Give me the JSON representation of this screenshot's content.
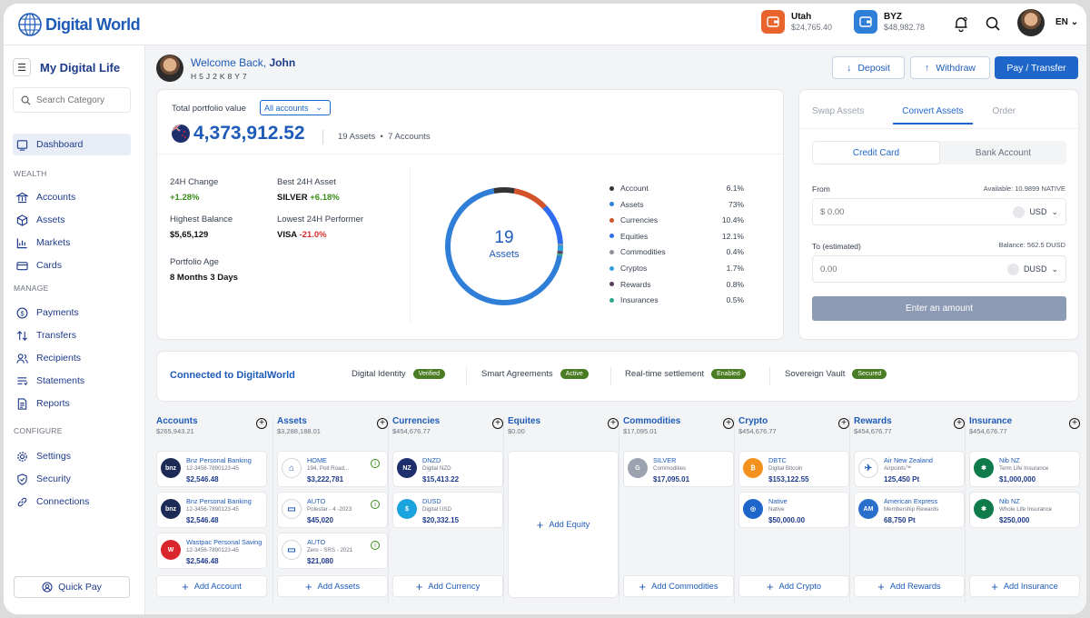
{
  "app": {
    "logo_text": "Digital World",
    "language": "EN"
  },
  "wallets": [
    {
      "name": "Utah",
      "value": "$24,765.40",
      "color": "#e8642c"
    },
    {
      "name": "BYZ",
      "value": "$48,982.78",
      "color": "#2f7fd8"
    }
  ],
  "sidebar": {
    "title": "My Digital Life",
    "search_placeholder": "Search Category",
    "dashboard": "Dashboard",
    "sections": [
      "WEALTH",
      "MANAGE",
      "CONFIGURE"
    ],
    "wealth": [
      "Accounts",
      "Assets",
      "Markets",
      "Cards"
    ],
    "manage": [
      "Payments",
      "Transfers",
      "Recipients",
      "Statements",
      "Reports"
    ],
    "configure": [
      "Settings",
      "Security",
      "Connections"
    ],
    "quick_pay": "Quick Pay"
  },
  "header": {
    "welcome": "Welcome Back,",
    "user_name": "John",
    "user_id": "H5J2K8Y7",
    "deposit": "Deposit",
    "withdraw": "Withdraw",
    "pay_transfer": "Pay / Transfer"
  },
  "portfolio": {
    "label": "Total portfolio value",
    "select": "All accounts",
    "value": "4,373,912.52",
    "assets_count": "19 Assets",
    "accounts_count": "7 Accounts",
    "change_label": "24H Change",
    "change_value": "+1.28%",
    "best_label": "Best 24H Asset",
    "best_name": "SILVER",
    "best_value": "+6.18%",
    "highest_label": "Highest Balance",
    "highest_value": "$5,65,129",
    "lowest_label": "Lowest 24H Performer",
    "lowest_name": "VISA",
    "lowest_value": "-21.0%",
    "age_label": "Portfolio Age",
    "age_value": "8 Months 3 Days",
    "donut_number": "19",
    "donut_label": "Assets"
  },
  "chart_data": {
    "type": "pie",
    "categories": [
      "Account",
      "Assets",
      "Currencies",
      "Equities",
      "Commodities",
      "Cryptos",
      "Rewards",
      "Insurances"
    ],
    "values": [
      6.1,
      73,
      10.4,
      12.1,
      0.4,
      1.7,
      0.8,
      0.5
    ],
    "labels": [
      "6.1%",
      "73%",
      "10.4%",
      "12.1%",
      "0.4%",
      "1.7%",
      "0.8%",
      "0.5%"
    ],
    "colors": [
      "#333333",
      "#2f7fd8",
      "#d2522a",
      "#2f6df0",
      "#8a8f98",
      "#2f9fe0",
      "#5a3f5f",
      "#2aa889"
    ],
    "center_text": "19 Assets"
  },
  "exchange": {
    "tabs": [
      "Swap Assets",
      "Convert Assets",
      "Order"
    ],
    "methods": [
      "Credit Card",
      "Bank Account"
    ],
    "from_label": "From",
    "available": "Available: 10.9899 NATIVE",
    "from_placeholder": "$ 0.00",
    "from_currency": "USD",
    "to_label": "To (estimated)",
    "balance": "Balance: 562.5 DUSD",
    "to_placeholder": "0.00",
    "to_currency": "DUSD",
    "submit": "Enter an amount"
  },
  "connected": {
    "title": "Connected to DigitalWorld",
    "items": [
      {
        "label": "Digital Identity",
        "badge": "Verified"
      },
      {
        "label": "Smart Agreements",
        "badge": "Active"
      },
      {
        "label": "Real-time settlement",
        "badge": "Enabled"
      },
      {
        "label": "Sovereign Vault",
        "badge": "Secured"
      }
    ]
  },
  "columns": [
    {
      "title": "Accounts",
      "total": "$265,943.21",
      "add": "Add Account",
      "items": [
        {
          "name": "Bnz Personal Banking",
          "detail": "12-3456-7890123-45",
          "amount": "$2,546.48",
          "icon": "bnz",
          "color": "#1d2a55"
        },
        {
          "name": "Bnz Personal Banking",
          "detail": "12-3456-7890123-45",
          "amount": "$2,546.48",
          "icon": "bnz",
          "color": "#1d2a55"
        },
        {
          "name": "Wastpac Personal Saving",
          "detail": "12-3456-7890123-45",
          "amount": "$2,546.48",
          "icon": "W",
          "color": "#d9262c"
        }
      ]
    },
    {
      "title": "Assets",
      "total": "$3,288,188.01",
      "add": "Add Assets",
      "items": [
        {
          "name": "HOME",
          "detail": "194, Polt Road...",
          "amount": "$3,222,781",
          "icon": "⌂",
          "color": "#ffffff"
        },
        {
          "name": "AUTO",
          "detail": "Polestar - 4 -2023",
          "amount": "$45,020",
          "icon": "▭",
          "color": "#ffffff"
        },
        {
          "name": "AUTO",
          "detail": "Zero - SRS - 2021",
          "amount": "$21,080",
          "icon": "▭",
          "color": "#ffffff"
        }
      ]
    },
    {
      "title": "Currencies",
      "total": "$454,676.77",
      "add": "Add Currency",
      "items": [
        {
          "name": "DNZD",
          "detail": "Digital NZD",
          "amount": "$15,413.22",
          "icon": "NZ",
          "color": "#1f2f6e"
        },
        {
          "name": "DUSD",
          "detail": "Digital USD",
          "amount": "$20,332.15",
          "icon": "$",
          "color": "#1aa3dc"
        }
      ]
    },
    {
      "title": "Equites",
      "total": "$0.00",
      "add": "Add Equity",
      "items": []
    },
    {
      "title": "Commodities",
      "total": "$17,095.01",
      "add": "Add Commodities",
      "items": [
        {
          "name": "SILVER",
          "detail": "Commodities",
          "amount": "$17,095.01",
          "icon": "G",
          "color": "#9ca3af"
        }
      ]
    },
    {
      "title": "Crypto",
      "total": "$454,676.77",
      "add": "Add Crypto",
      "items": [
        {
          "name": "DBTC",
          "detail": "Digital Bitcoin",
          "amount": "$153,122.55",
          "icon": "₿",
          "color": "#f2921c"
        },
        {
          "name": "Native",
          "detail": "Native",
          "amount": "$50,000.00",
          "icon": "◎",
          "color": "#1e66c9"
        }
      ]
    },
    {
      "title": "Rewards",
      "total": "$454,676.77",
      "add": "Add Rewards",
      "items": [
        {
          "name": "Air New Zealand",
          "detail": "Airpoints™",
          "amount": "125,450 Pt",
          "icon": "✈",
          "color": "#ffffff"
        },
        {
          "name": "American Express",
          "detail": "Membership Rewards",
          "amount": "68,750 Pt",
          "icon": "AM",
          "color": "#2a6fcc"
        }
      ]
    },
    {
      "title": "Insurance",
      "total": "$454,676.77",
      "add": "Add Insurance",
      "items": [
        {
          "name": "Nib NZ",
          "detail": "Term Life Insurance",
          "amount": "$1,000,000",
          "icon": "✱",
          "color": "#0f7a4a"
        },
        {
          "name": "Nib NZ",
          "detail": "Whole Life Insurance",
          "amount": "$250,000",
          "icon": "✱",
          "color": "#0f7a4a"
        }
      ]
    }
  ]
}
